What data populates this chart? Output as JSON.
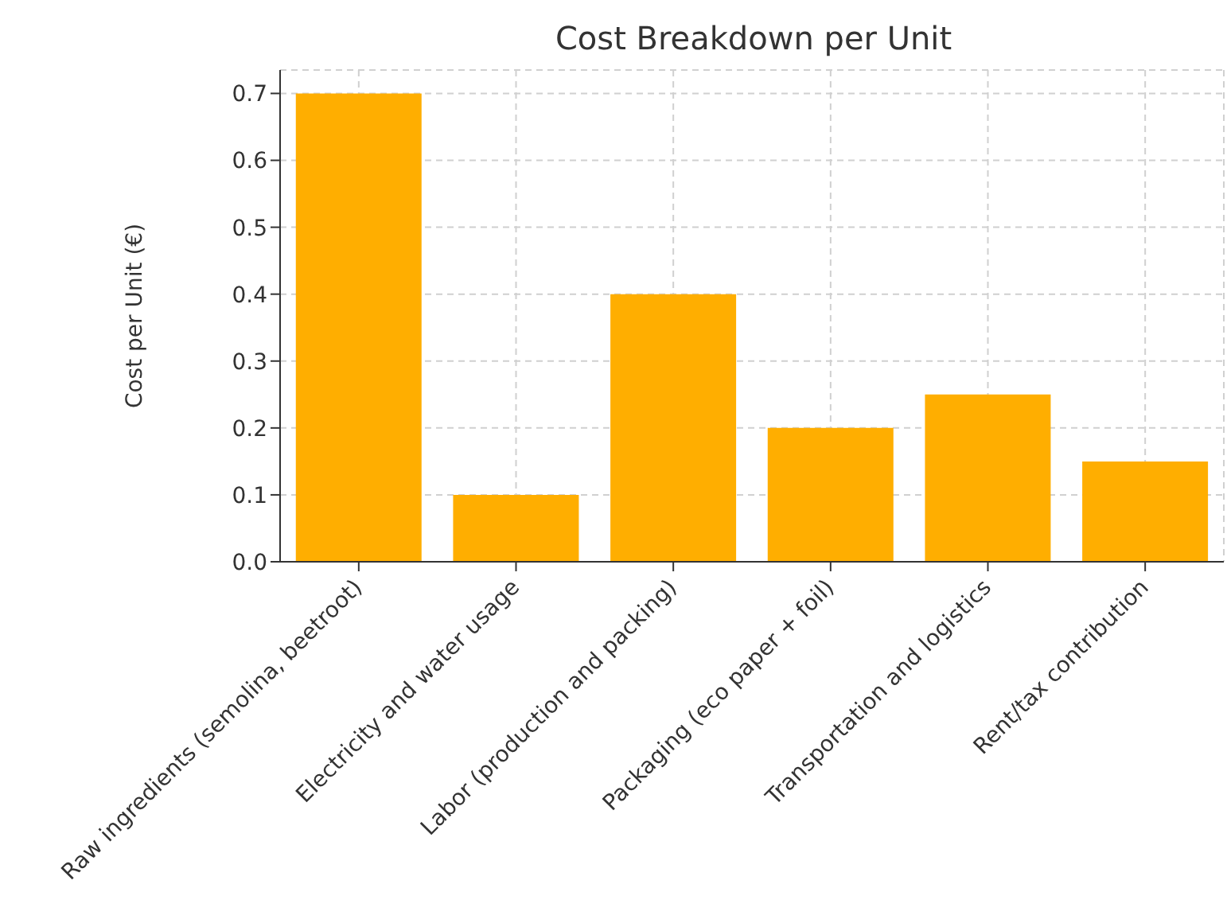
{
  "chart_data": {
    "type": "bar",
    "title": "Cost Breakdown per Unit",
    "ylabel": "Cost per Unit (€)",
    "categories": [
      "Raw ingredients (semolina, beetroot)",
      "Electricity and water usage",
      "Labor (production and packing)",
      "Packaging (eco paper + foil)",
      "Transportation and logistics",
      "Rent/tax contribution"
    ],
    "values": [
      0.7,
      0.1,
      0.4,
      0.2,
      0.25,
      0.15
    ],
    "color": "#ffae00",
    "ylim": [
      0,
      0.735
    ],
    "yticks": [
      {
        "value": 0,
        "label": "0.0"
      },
      0.1,
      0.2,
      0.3,
      0.4,
      0.5,
      0.6,
      0.7
    ],
    "grid": true
  }
}
